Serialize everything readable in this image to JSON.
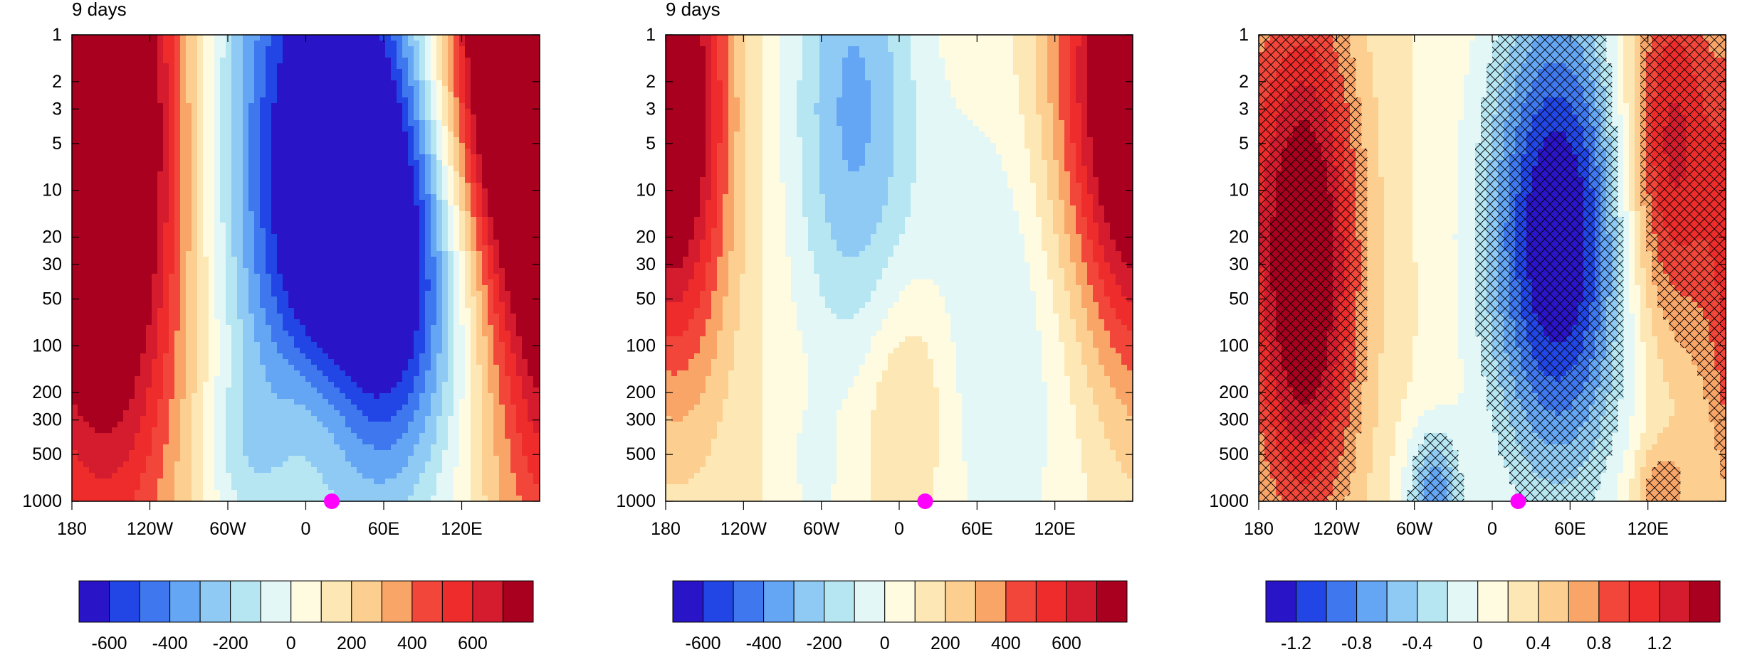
{
  "panels": [
    {
      "title": "9 days"
    },
    {
      "title": "9 days"
    },
    {
      "title": ""
    }
  ],
  "colors": {
    "palette": [
      "#2a14c8",
      "#2246e6",
      "#3f78ee",
      "#64a5f4",
      "#8fcaf5",
      "#b6e6f2",
      "#e3f7f7",
      "#fffbe0",
      "#fde8b5",
      "#fccf91",
      "#f9a568",
      "#f2463a",
      "#ee2c2c",
      "#d41c2e",
      "#a8001e"
    ],
    "marker": "#ff00ff"
  },
  "chart_data": [
    {
      "type": "heatmap",
      "title": "9 days",
      "x_ticks": [
        "180",
        "120W",
        "60W",
        "0",
        "60E",
        "120E"
      ],
      "x_tick_values": [
        -180,
        -120,
        -60,
        0,
        60,
        120
      ],
      "x_range": [
        -180,
        180
      ],
      "y_ticks": [
        "1",
        "2",
        "3",
        "5",
        "10",
        "20",
        "30",
        "50",
        "100",
        "200",
        "300",
        "500",
        "1000"
      ],
      "y_tick_values": [
        1,
        2,
        3,
        5,
        10,
        20,
        30,
        50,
        100,
        200,
        300,
        500,
        1000
      ],
      "y_range": [
        1,
        1000
      ],
      "y_scale": "log",
      "y_reversed": true,
      "colorbar_labels": [
        "-600",
        "-400",
        "-200",
        "0",
        "200",
        "400",
        "600"
      ],
      "colorbar_levels": [
        -700,
        -600,
        -500,
        -400,
        -300,
        -200,
        -100,
        0,
        100,
        200,
        300,
        400,
        500,
        600,
        700
      ],
      "marker_point": {
        "x": 20,
        "y": 1000
      },
      "features": [
        {
          "lon": -155,
          "p": 10,
          "value": 900,
          "width": 48,
          "depth": 1.7
        },
        {
          "lon": 20,
          "p": 5,
          "value": -900,
          "width": 62,
          "depth": 1.5
        },
        {
          "lon": 60,
          "p": 40,
          "value": -500,
          "width": 45,
          "depth": 0.9
        },
        {
          "lon": 160,
          "p": 1,
          "value": 900,
          "width": 45,
          "depth": 1.0
        },
        {
          "lon": 15,
          "p": 250,
          "value": 220,
          "width": 28,
          "depth": 0.45
        },
        {
          "lon": -50,
          "p": 500,
          "value": -140,
          "width": 22,
          "depth": 0.35
        }
      ]
    },
    {
      "type": "heatmap",
      "title": "9 days",
      "x_ticks": [
        "180",
        "120W",
        "60W",
        "0",
        "60E",
        "120E"
      ],
      "x_tick_values": [
        -180,
        -120,
        -60,
        0,
        60,
        120
      ],
      "x_range": [
        -180,
        180
      ],
      "y_ticks": [
        "1",
        "2",
        "3",
        "5",
        "10",
        "20",
        "30",
        "50",
        "100",
        "200",
        "300",
        "500",
        "1000"
      ],
      "y_tick_values": [
        1,
        2,
        3,
        5,
        10,
        20,
        30,
        50,
        100,
        200,
        300,
        500,
        1000
      ],
      "y_range": [
        1,
        1000
      ],
      "y_scale": "log",
      "y_reversed": true,
      "colorbar_labels": [
        "-600",
        "-400",
        "-200",
        "0",
        "200",
        "400",
        "600"
      ],
      "colorbar_levels": [
        -700,
        -600,
        -500,
        -400,
        -300,
        -200,
        -100,
        0,
        100,
        200,
        300,
        400,
        500,
        600,
        700
      ],
      "marker_point": {
        "x": 20,
        "y": 1000
      },
      "features": [
        {
          "lon": -168,
          "p": 4,
          "value": 520,
          "width": 28,
          "depth": 1.2
        },
        {
          "lon": -35,
          "p": 3,
          "value": -420,
          "width": 35,
          "depth": 1.2
        },
        {
          "lon": 160,
          "p": 2,
          "value": 560,
          "width": 35,
          "depth": 1.1
        },
        {
          "lon": 5,
          "p": 220,
          "value": 200,
          "width": 25,
          "depth": 0.55
        },
        {
          "lon": 80,
          "p": 80,
          "value": -200,
          "width": 45,
          "depth": 1.2
        },
        {
          "lon": -65,
          "p": 600,
          "value": -130,
          "width": 12,
          "depth": 0.25
        }
      ]
    },
    {
      "type": "heatmap",
      "title": "",
      "x_ticks": [
        "180",
        "120W",
        "60W",
        "0",
        "60E",
        "120E"
      ],
      "x_tick_values": [
        -180,
        -120,
        -60,
        0,
        60,
        120
      ],
      "x_range": [
        -180,
        180
      ],
      "y_ticks": [
        "1",
        "2",
        "3",
        "5",
        "10",
        "20",
        "30",
        "50",
        "100",
        "200",
        "300",
        "500",
        "1000"
      ],
      "y_tick_values": [
        1,
        2,
        3,
        5,
        10,
        20,
        30,
        50,
        100,
        200,
        300,
        500,
        1000
      ],
      "y_range": [
        1,
        1000
      ],
      "y_scale": "log",
      "y_reversed": true,
      "colorbar_labels": [
        "-1.2",
        "-0.8",
        "-0.4",
        "0",
        "0.4",
        "0.8",
        "1.2"
      ],
      "colorbar_levels": [
        -1.4,
        -1.2,
        -1.0,
        -0.8,
        -0.6,
        -0.4,
        -0.2,
        0,
        0.2,
        0.4,
        0.6,
        0.8,
        1.0,
        1.2,
        1.4
      ],
      "marker_point": {
        "x": 20,
        "y": 1000
      },
      "hatching": "cross-hatched regions mark significance",
      "features": [
        {
          "lon": -145,
          "p": 30,
          "value": 1.6,
          "width": 30,
          "depth": 1.2
        },
        {
          "lon": 50,
          "p": 20,
          "value": -1.7,
          "width": 38,
          "depth": 1.1
        },
        {
          "lon": 135,
          "p": 5,
          "value": 1.1,
          "width": 25,
          "depth": 0.9
        },
        {
          "lon": -45,
          "p": 900,
          "value": -0.9,
          "width": 15,
          "depth": 0.3
        },
        {
          "lon": 130,
          "p": 950,
          "value": 0.6,
          "width": 15,
          "depth": 0.25
        }
      ]
    }
  ]
}
